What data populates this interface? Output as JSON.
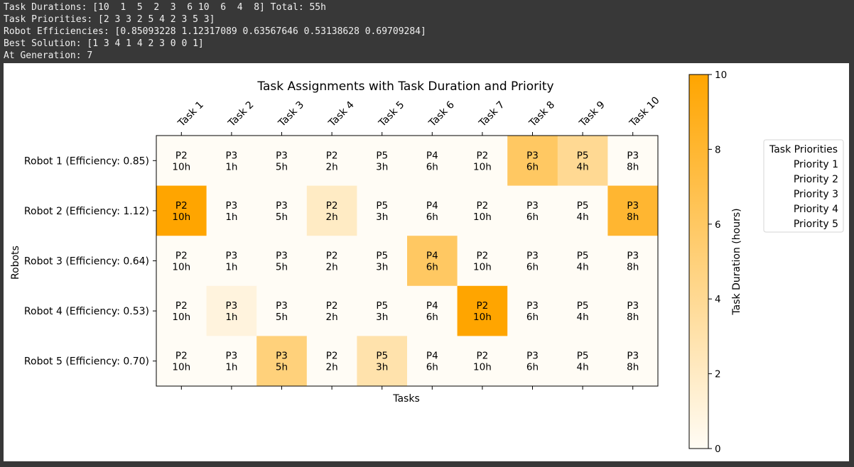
{
  "console": {
    "lines": [
      "Task Durations: [10  1  5  2  3  6 10  6  4  8] Total: 55h",
      "Task Priorities: [2 3 3 2 5 4 2 3 5 3]",
      "Robot Efficiencies: [0.85093228 1.12317089 0.63567646 0.53138628 0.69709284]",
      "Best Solution: [1 3 4 1 4 2 3 0 0 1]",
      "At Generation: 7"
    ]
  },
  "colors": {
    "console_bg": "#383838",
    "console_text": "#f0f0f0",
    "cmap_low": "#fffcf5",
    "cmap_high": "#ffa500"
  },
  "chart_data": {
    "type": "heatmap",
    "title": "Task Assignments with Task Duration and Priority",
    "xlabel": "Tasks",
    "ylabel": "Robots",
    "x_tick_position": "top",
    "categories": [
      "Task 1",
      "Task 2",
      "Task 3",
      "Task 4",
      "Task 5",
      "Task 6",
      "Task 7",
      "Task 8",
      "Task 9",
      "Task 10"
    ],
    "rows": [
      "Robot 1 (Efficiency: 0.85)",
      "Robot 2 (Efficiency: 1.12)",
      "Robot 3 (Efficiency: 0.64)",
      "Robot 4 (Efficiency: 0.53)",
      "Robot 5 (Efficiency: 0.70)"
    ],
    "task_durations": [
      10,
      1,
      5,
      2,
      3,
      6,
      10,
      6,
      4,
      8
    ],
    "task_priorities": [
      2,
      3,
      3,
      2,
      5,
      4,
      2,
      3,
      5,
      3
    ],
    "assignment": [
      1,
      3,
      4,
      1,
      4,
      2,
      3,
      0,
      0,
      1
    ],
    "values": [
      [
        0,
        0,
        0,
        0,
        0,
        0,
        0,
        6,
        4,
        0
      ],
      [
        10,
        0,
        0,
        2,
        0,
        0,
        0,
        0,
        0,
        8
      ],
      [
        0,
        0,
        0,
        0,
        0,
        6,
        0,
        0,
        0,
        0
      ],
      [
        0,
        1,
        0,
        0,
        0,
        0,
        10,
        0,
        0,
        0
      ],
      [
        0,
        0,
        5,
        0,
        3,
        0,
        0,
        0,
        0,
        0
      ]
    ],
    "cell_labels": [
      [
        "P2\n10h",
        "P3\n1h",
        "P3\n5h",
        "P2\n2h",
        "P5\n3h",
        "P4\n6h",
        "P2\n10h",
        "P3\n6h",
        "P5\n4h",
        "P3\n8h"
      ],
      [
        "P2\n10h",
        "P3\n1h",
        "P3\n5h",
        "P2\n2h",
        "P5\n3h",
        "P4\n6h",
        "P2\n10h",
        "P3\n6h",
        "P5\n4h",
        "P3\n8h"
      ],
      [
        "P2\n10h",
        "P3\n1h",
        "P3\n5h",
        "P2\n2h",
        "P5\n3h",
        "P4\n6h",
        "P2\n10h",
        "P3\n6h",
        "P5\n4h",
        "P3\n8h"
      ],
      [
        "P2\n10h",
        "P3\n1h",
        "P3\n5h",
        "P2\n2h",
        "P5\n3h",
        "P4\n6h",
        "P2\n10h",
        "P3\n6h",
        "P5\n4h",
        "P3\n8h"
      ],
      [
        "P2\n10h",
        "P3\n1h",
        "P3\n5h",
        "P2\n2h",
        "P5\n3h",
        "P4\n6h",
        "P2\n10h",
        "P3\n6h",
        "P5\n4h",
        "P3\n8h"
      ]
    ],
    "colorbar": {
      "label": "Task Duration (hours)",
      "min": 0,
      "max": 10,
      "ticks": [
        0,
        2,
        4,
        6,
        8,
        10
      ]
    },
    "legend": {
      "title": "Task Priorities",
      "entries": [
        "Priority 1",
        "Priority 2",
        "Priority 3",
        "Priority 4",
        "Priority 5"
      ],
      "placement": "right, outside plot"
    }
  }
}
